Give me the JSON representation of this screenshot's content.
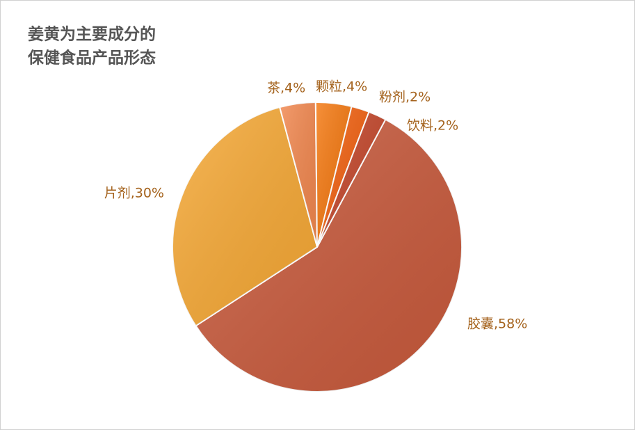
{
  "chart_data": {
    "type": "pie",
    "title": [
      "姜黄为主要成分的",
      "保健食品产品形态"
    ],
    "categories": [
      "胶囊",
      "片剂",
      "茶",
      "颗粒",
      "粉剂",
      "饮料"
    ],
    "values": [
      58,
      30,
      4,
      4,
      2,
      2
    ],
    "value_labels": [
      "胶囊,58%",
      "片剂,30%",
      "茶,4%",
      "颗粒,4%",
      "粉剂,2%",
      "饮料,2%"
    ],
    "colors": [
      "#c95a3c",
      "#f7a935",
      "#f2874e",
      "#f5780f",
      "#f2600f",
      "#c4462a"
    ]
  }
}
